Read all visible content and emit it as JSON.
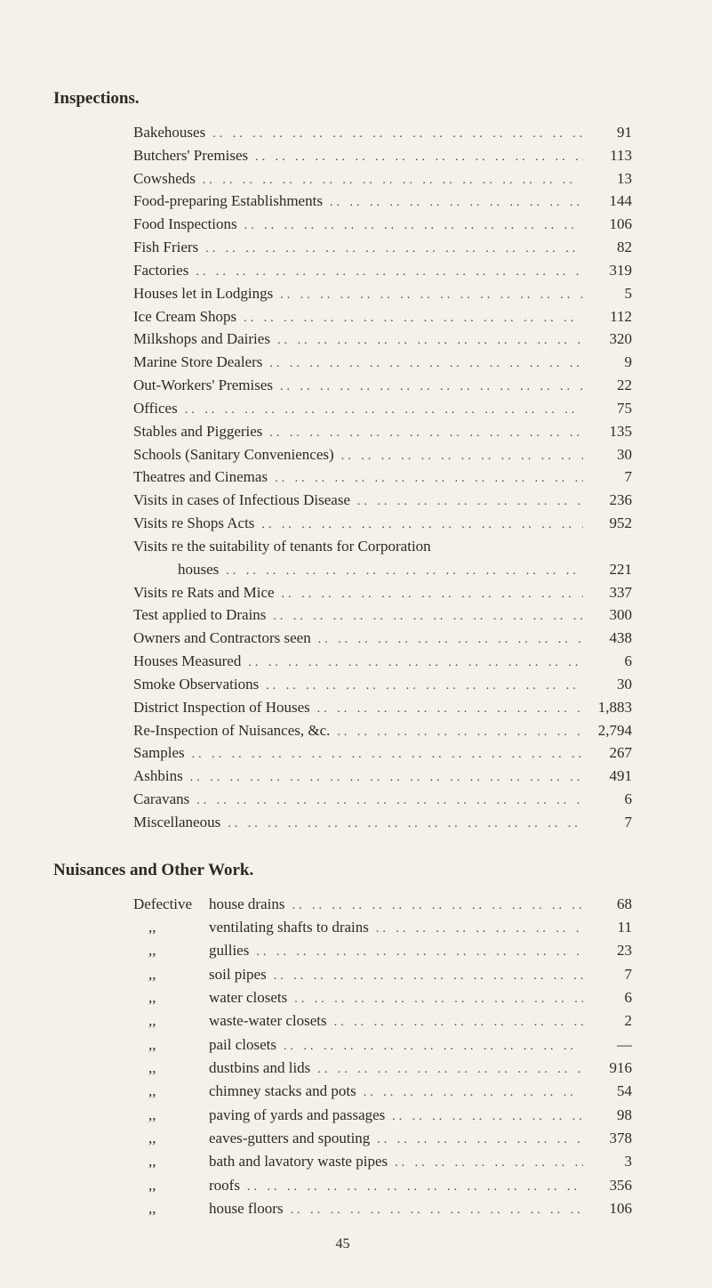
{
  "inspections": {
    "title": "Inspections.",
    "items": [
      {
        "label": "Bakehouses",
        "value": "91"
      },
      {
        "label": "Butchers' Premises",
        "value": "113"
      },
      {
        "label": "Cowsheds",
        "value": "13"
      },
      {
        "label": "Food-preparing Establishments",
        "value": "144"
      },
      {
        "label": "Food Inspections",
        "value": "106"
      },
      {
        "label": "Fish Friers",
        "value": "82"
      },
      {
        "label": "Factories",
        "value": "319"
      },
      {
        "label": "Houses let in Lodgings",
        "value": "5"
      },
      {
        "label": "Ice Cream Shops",
        "value": "112"
      },
      {
        "label": "Milkshops and Dairies",
        "value": "320"
      },
      {
        "label": "Marine Store Dealers",
        "value": "9"
      },
      {
        "label": "Out-Workers' Premises",
        "value": "22"
      },
      {
        "label": "Offices",
        "value": "75"
      },
      {
        "label": "Stables and Piggeries",
        "value": "135"
      },
      {
        "label": "Schools (Sanitary Conveniences)",
        "value": "30"
      },
      {
        "label": "Theatres and Cinemas",
        "value": "7"
      },
      {
        "label": "Visits in cases of Infectious Disease",
        "value": "236"
      },
      {
        "label": "Visits re Shops Acts",
        "value": "952"
      },
      {
        "label": "Visits re the suitability of tenants for Corporation",
        "value": "",
        "noLeader": true
      },
      {
        "label": "houses",
        "value": "221",
        "indent": true
      },
      {
        "label": "Visits re Rats and Mice",
        "value": "337"
      },
      {
        "label": "Test applied to Drains",
        "value": "300"
      },
      {
        "label": "Owners and Contractors seen",
        "value": "438"
      },
      {
        "label": "Houses Measured",
        "value": "6"
      },
      {
        "label": "Smoke Observations",
        "value": "30"
      },
      {
        "label": "District Inspection of Houses",
        "value": "1,883"
      },
      {
        "label": "Re-Inspection of Nuisances, &c.",
        "value": "2,794"
      },
      {
        "label": "Samples",
        "value": "267"
      },
      {
        "label": "Ashbins",
        "value": "491"
      },
      {
        "label": "Caravans",
        "value": "6"
      },
      {
        "label": "Miscellaneous",
        "value": "7"
      }
    ]
  },
  "nuisances": {
    "title": "Nuisances and Other Work.",
    "prefix_first": "Defective",
    "prefix_ditto": ",,",
    "items": [
      {
        "label": "house drains",
        "value": "68"
      },
      {
        "label": "ventilating shafts to drains",
        "value": "11"
      },
      {
        "label": "gullies",
        "value": "23"
      },
      {
        "label": "soil pipes",
        "value": "7"
      },
      {
        "label": "water closets",
        "value": "6"
      },
      {
        "label": "waste-water closets",
        "value": "2"
      },
      {
        "label": "pail closets",
        "value": "—"
      },
      {
        "label": "dustbins and lids",
        "value": "916"
      },
      {
        "label": "chimney stacks and pots",
        "value": "54"
      },
      {
        "label": "paving of yards and passages",
        "value": "98"
      },
      {
        "label": "eaves-gutters and spouting",
        "value": "378"
      },
      {
        "label": "bath and lavatory waste pipes",
        "value": "3"
      },
      {
        "label": "roofs",
        "value": "356"
      },
      {
        "label": "house floors",
        "value": "106"
      }
    ]
  },
  "page_number": "45",
  "leader_dots": " .. .. .. .. .. .. .. .. .. .. .. .. .. .. .. .. .. .. .. .."
}
